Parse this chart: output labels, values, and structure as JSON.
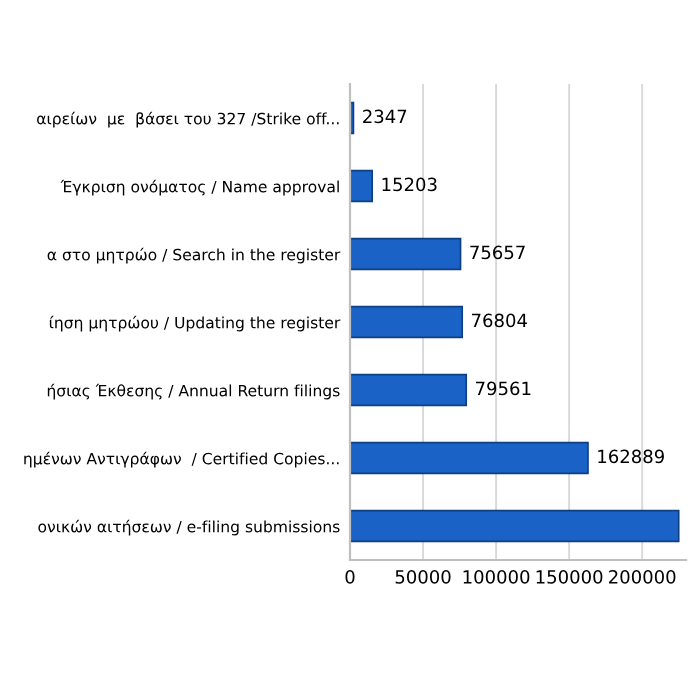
{
  "chart_data": {
    "type": "bar",
    "orientation": "horizontal",
    "categories": [
      "αιρείων  με  βάσει του 327 /Strike off...",
      "Έγκριση ονόματος / Name approval",
      "α στο μητρώο / Search in the register",
      "ίηση μητρώου / Updating the register",
      "ήσιας Έκθεσης / Annual Return filings",
      "ημένων Αντιγράφων  / Certified Copies...",
      "ονικών αιτήσεων / e-filing submissions"
    ],
    "values": [
      2347,
      15203,
      75657,
      76804,
      79561,
      162889,
      225000
    ],
    "value_labels": [
      "2347",
      "15203",
      "75657",
      "76804",
      "79561",
      "162889",
      null
    ],
    "color": "#1a62c6",
    "xlim": [
      0,
      230000
    ],
    "xticks": [
      0,
      50000,
      100000,
      150000,
      200000
    ],
    "grid": "x"
  }
}
